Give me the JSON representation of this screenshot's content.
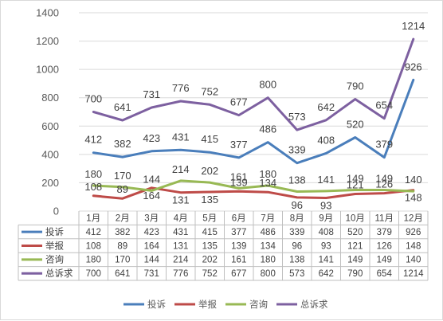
{
  "chart_data": {
    "type": "line",
    "categories": [
      "1月",
      "2月",
      "3月",
      "4月",
      "5月",
      "6月",
      "7月",
      "8月",
      "9月",
      "10月",
      "11月",
      "12月"
    ],
    "ylim": [
      0,
      1400
    ],
    "yticks": [
      0,
      200,
      400,
      600,
      800,
      1000,
      1200,
      1400
    ],
    "grid": true,
    "legend_position": "bottom",
    "data_table": true,
    "series": [
      {
        "name": "投诉",
        "color": "#4a7ebb",
        "values": [
          412,
          382,
          423,
          431,
          415,
          377,
          486,
          339,
          408,
          520,
          379,
          926
        ]
      },
      {
        "name": "举报",
        "color": "#be4b48",
        "values": [
          108,
          89,
          164,
          131,
          135,
          139,
          134,
          96,
          93,
          121,
          126,
          148
        ]
      },
      {
        "name": "咨询",
        "color": "#98b954",
        "values": [
          180,
          170,
          144,
          214,
          202,
          161,
          180,
          138,
          141,
          149,
          149,
          140
        ]
      },
      {
        "name": "总诉求",
        "color": "#7d60a0",
        "values": [
          700,
          641,
          731,
          776,
          752,
          677,
          800,
          573,
          642,
          790,
          654,
          1214
        ]
      }
    ]
  }
}
